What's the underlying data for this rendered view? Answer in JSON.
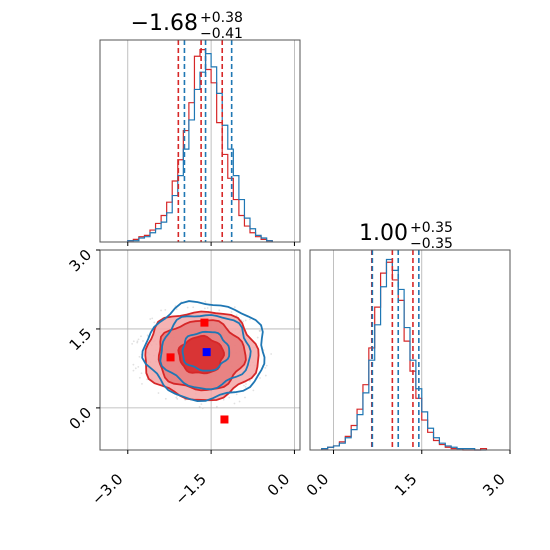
{
  "colors": {
    "red": "#d62728",
    "blue": "#1f77b4",
    "marker_blue": "#0000ff",
    "grid": "#b0b0b0",
    "frame": "#555555",
    "fill_light": "#f4a6a6",
    "fill_dark": "#d62728"
  },
  "chart_data": [
    {
      "type": "histogram",
      "panel": "param-1-marginal",
      "title_value": "−1.68",
      "title_plus": "+0.38",
      "title_minus": "−0.41",
      "xlim": [
        -3.5,
        0.1
      ],
      "x_ticks": [
        -3.0,
        -1.5,
        0.0
      ],
      "series": [
        {
          "color": "#d62728",
          "quantiles": [
            -2.09,
            -1.68,
            -1.3
          ],
          "bin_edges": [
            -3.0,
            -2.9,
            -2.8,
            -2.7,
            -2.6,
            -2.5,
            -2.4,
            -2.3,
            -2.2,
            -2.1,
            -2.0,
            -1.9,
            -1.8,
            -1.7,
            -1.6,
            -1.5,
            -1.4,
            -1.3,
            -1.2,
            -1.1,
            -1.0,
            -0.9,
            -0.8,
            -0.7,
            -0.6,
            -0.5,
            -0.4
          ],
          "counts": [
            1,
            2,
            4,
            5,
            9,
            14,
            20,
            30,
            46,
            62,
            84,
            105,
            140,
            145,
            130,
            120,
            90,
            66,
            48,
            32,
            20,
            12,
            7,
            4,
            2,
            1
          ]
        },
        {
          "color": "#1f77b4",
          "quantiles": [
            -1.98,
            -1.6,
            -1.13
          ],
          "bin_edges": [
            -3.0,
            -2.9,
            -2.8,
            -2.7,
            -2.6,
            -2.5,
            -2.4,
            -2.3,
            -2.2,
            -2.1,
            -2.0,
            -1.9,
            -1.8,
            -1.7,
            -1.6,
            -1.5,
            -1.4,
            -1.3,
            -1.2,
            -1.1,
            -1.0,
            -0.9,
            -0.8,
            -0.7,
            -0.6,
            -0.5,
            -0.4
          ],
          "counts": [
            1,
            1,
            3,
            4,
            7,
            10,
            15,
            22,
            35,
            50,
            70,
            92,
            115,
            128,
            142,
            132,
            112,
            88,
            70,
            50,
            32,
            18,
            10,
            5,
            3,
            1
          ]
        }
      ]
    },
    {
      "type": "histogram",
      "panel": "param-2-marginal",
      "title_value": "1.00",
      "title_plus": "+0.35",
      "title_minus": "−0.35",
      "xlim": [
        -0.4,
        3.0
      ],
      "x_ticks": [
        0.0,
        1.5,
        3.0
      ],
      "series": [
        {
          "color": "#d62728",
          "quantiles": [
            0.65,
            1.0,
            1.35
          ],
          "bin_edges": [
            -0.2,
            -0.1,
            0.0,
            0.1,
            0.2,
            0.3,
            0.4,
            0.5,
            0.6,
            0.7,
            0.8,
            0.9,
            1.0,
            1.1,
            1.2,
            1.3,
            1.4,
            1.5,
            1.6,
            1.7,
            1.8,
            1.9,
            2.0,
            2.1,
            2.2,
            2.3,
            2.4,
            2.5,
            2.6
          ],
          "counts": [
            1,
            2,
            3,
            6,
            10,
            18,
            30,
            48,
            75,
            105,
            130,
            138,
            125,
            110,
            80,
            58,
            38,
            22,
            13,
            7,
            4,
            2,
            1,
            1,
            0,
            0,
            0,
            1
          ]
        },
        {
          "color": "#1f77b4",
          "quantiles": [
            0.66,
            1.1,
            1.45
          ],
          "bin_edges": [
            -0.2,
            -0.1,
            0.0,
            0.1,
            0.2,
            0.3,
            0.4,
            0.5,
            0.6,
            0.7,
            0.8,
            0.9,
            1.0,
            1.1,
            1.2,
            1.3,
            1.4,
            1.5,
            1.6,
            1.7,
            1.8,
            1.9,
            2.0,
            2.1,
            2.2,
            2.3,
            2.4,
            2.5,
            2.6
          ],
          "counts": [
            1,
            2,
            3,
            5,
            9,
            15,
            26,
            42,
            66,
            92,
            120,
            140,
            132,
            118,
            90,
            66,
            45,
            28,
            16,
            9,
            5,
            3,
            2,
            1,
            1,
            1,
            0,
            0
          ]
        }
      ]
    },
    {
      "type": "contour",
      "panel": "param-2-vs-param-1",
      "xlim": [
        -3.5,
        0.1
      ],
      "ylim": [
        -0.8,
        3.0
      ],
      "x_ticks": [
        -3.0,
        -1.5,
        0.0
      ],
      "y_ticks": [
        0.0,
        1.5,
        3.0
      ],
      "series": [
        {
          "color": "#d62728",
          "filled": true,
          "center": [
            -1.68,
            1.0
          ],
          "levels": [
            {
              "rx": 0.4,
              "ry": 0.35
            },
            {
              "rx": 0.78,
              "ry": 0.66
            },
            {
              "rx": 1.02,
              "ry": 0.84
            }
          ]
        },
        {
          "color": "#1f77b4",
          "filled": false,
          "center": [
            -1.6,
            1.08
          ],
          "levels": [
            {
              "rx": 0.42,
              "ry": 0.37
            },
            {
              "rx": 0.8,
              "ry": 0.7
            },
            {
              "rx": 1.08,
              "ry": 0.92
            }
          ]
        }
      ],
      "markers": [
        {
          "x": -2.23,
          "y": 0.96,
          "color": "#ff0000"
        },
        {
          "x": -1.62,
          "y": 1.62,
          "color": "#ff0000"
        },
        {
          "x": -1.26,
          "y": -0.22,
          "color": "#ff0000"
        },
        {
          "x": -1.58,
          "y": 1.06,
          "color": "#0000ff"
        }
      ]
    }
  ]
}
